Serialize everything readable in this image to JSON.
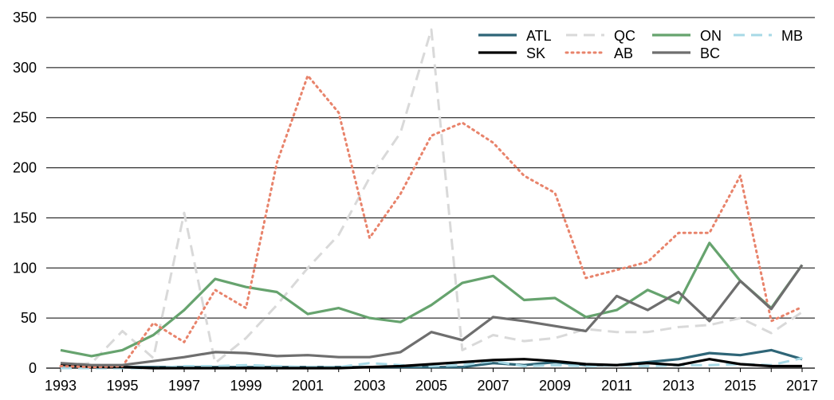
{
  "chart_data": {
    "type": "line",
    "title": "",
    "xlabel": "",
    "ylabel": "",
    "x": [
      1993,
      1994,
      1995,
      1996,
      1997,
      1998,
      1999,
      2000,
      2001,
      2002,
      2003,
      2004,
      2005,
      2006,
      2007,
      2008,
      2009,
      2010,
      2011,
      2012,
      2013,
      2014,
      2015,
      2016,
      2017
    ],
    "xticks": [
      "1993",
      "1995",
      "1997",
      "1999",
      "2001",
      "2003",
      "2005",
      "2007",
      "2009",
      "2011",
      "2013",
      "2015",
      "2017"
    ],
    "yticks": [
      "0",
      "50",
      "100",
      "150",
      "200",
      "250",
      "300",
      "350"
    ],
    "ylim": [
      0,
      350
    ],
    "grid": true,
    "legend_position": "top-right",
    "series": [
      {
        "name": "ATL",
        "color": "#2e6577",
        "style": "solid",
        "values": [
          2,
          1,
          1,
          1,
          1,
          1,
          1,
          1,
          1,
          1,
          1,
          1,
          1,
          1,
          5,
          3,
          6,
          3,
          3,
          6,
          9,
          15,
          13,
          18,
          9
        ]
      },
      {
        "name": "QC",
        "color": "#d9d9d9",
        "style": "dashed",
        "values": [
          3,
          5,
          37,
          10,
          155,
          5,
          30,
          63,
          100,
          133,
          190,
          235,
          338,
          18,
          33,
          27,
          30,
          39,
          36,
          36,
          41,
          43,
          50,
          35,
          56
        ]
      },
      {
        "name": "ON",
        "color": "#66a36e",
        "style": "solid",
        "values": [
          18,
          12,
          18,
          33,
          58,
          89,
          81,
          76,
          54,
          60,
          50,
          46,
          63,
          85,
          92,
          68,
          70,
          51,
          58,
          78,
          65,
          125,
          87,
          60,
          103
        ]
      },
      {
        "name": "MB",
        "color": "#a7d9e6",
        "style": "dashed",
        "values": [
          0,
          0,
          0,
          0,
          2,
          2,
          3,
          2,
          1,
          1,
          5,
          3,
          2,
          3,
          7,
          2,
          3,
          2,
          3,
          2,
          3,
          3,
          4,
          3,
          10
        ]
      },
      {
        "name": "SK",
        "color": "#000000",
        "style": "solid",
        "values": [
          4,
          1,
          1,
          0,
          0,
          0,
          0,
          0,
          0,
          0,
          1,
          2,
          4,
          6,
          8,
          9,
          7,
          4,
          3,
          5,
          3,
          9,
          4,
          2,
          2
        ]
      },
      {
        "name": "AB",
        "color": "#e8836b",
        "style": "dotted",
        "values": [
          2,
          1,
          2,
          45,
          26,
          78,
          60,
          205,
          292,
          255,
          130,
          174,
          232,
          245,
          225,
          192,
          175,
          90,
          98,
          106,
          135,
          135,
          192,
          47,
          61
        ]
      },
      {
        "name": "BC",
        "color": "#6e6e6e",
        "style": "solid",
        "values": [
          5,
          3,
          3,
          7,
          11,
          16,
          15,
          12,
          13,
          11,
          11,
          16,
          36,
          28,
          51,
          47,
          42,
          37,
          72,
          58,
          76,
          47,
          87,
          59,
          103
        ]
      }
    ]
  }
}
